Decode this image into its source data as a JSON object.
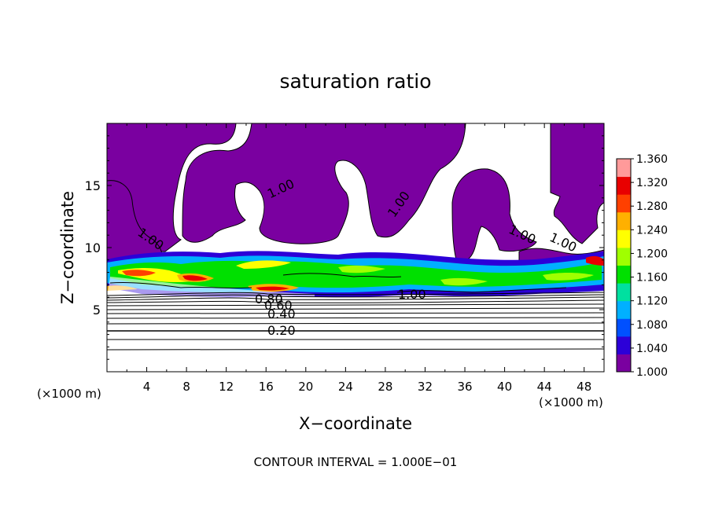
{
  "chart_data": {
    "type": "heatmap",
    "title": "saturation ratio",
    "xlabel": "X−coordinate",
    "ylabel": "Z−coordinate",
    "x_unit": "(×1000 m)",
    "y_unit": "(×1000 m)",
    "footer": "CONTOUR INTERVAL = 1.000E−01",
    "xlim": [
      0,
      50
    ],
    "ylim": [
      0,
      20
    ],
    "x_ticks": [
      "4",
      "8",
      "12",
      "16",
      "20",
      "24",
      "28",
      "32",
      "36",
      "40",
      "44",
      "48"
    ],
    "y_ticks": [
      "5",
      "10",
      "15"
    ],
    "colorbar": {
      "range": [
        1.0,
        1.36
      ],
      "labels": [
        "1.360",
        "1.320",
        "1.280",
        "1.240",
        "1.200",
        "1.160",
        "1.120",
        "1.080",
        "1.040",
        "1.000"
      ],
      "colors": [
        "#7a00a0",
        "#2c00d8",
        "#0050ff",
        "#00b0ff",
        "#00e0a0",
        "#00e000",
        "#a0ff00",
        "#ffff00",
        "#ffb000",
        "#ff4000",
        "#e80000",
        "#ff9a9a"
      ]
    },
    "contour_labels": [
      "1.00",
      "1.00",
      "1.00",
      "1.00",
      "1.00",
      "1.00",
      "0.80",
      "0.60",
      "0.40",
      "0.20"
    ],
    "contour_levels": [
      0.0,
      0.1,
      0.2,
      0.3,
      0.4,
      0.5,
      0.6,
      0.7,
      0.8,
      0.9,
      1.0
    ]
  }
}
